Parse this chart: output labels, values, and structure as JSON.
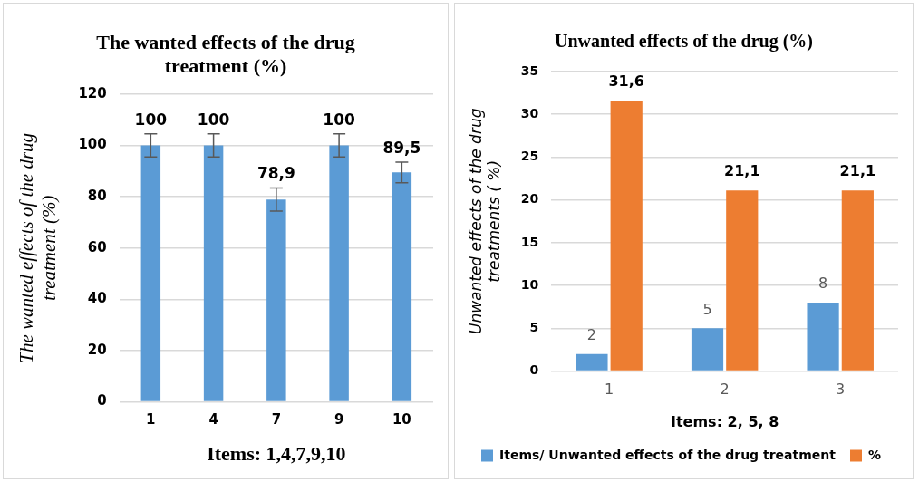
{
  "chart_data": [
    {
      "type": "bar",
      "title": "The wanted effects of the drug treatment (%)",
      "xlabel": "Items: 1,4,7,9,10",
      "ylabel": "The wanted effects of the drug treatment (%)",
      "categories": [
        "1",
        "4",
        "7",
        "9",
        "10"
      ],
      "values": [
        100,
        100,
        78.9,
        100,
        89.5
      ],
      "color": "#5b9bd5",
      "errors": [
        4.5,
        4.5,
        4.5,
        4.5,
        4
      ],
      "value_labels": [
        "100",
        "100",
        "78,9",
        "100",
        "89,5"
      ],
      "ylim": [
        0,
        120
      ],
      "yticks": [
        0,
        20,
        40,
        60,
        80,
        100,
        120
      ],
      "grid": "y",
      "legend": false
    },
    {
      "type": "bar",
      "title": "Unwanted effects of the drug (%)",
      "xlabel": "Items: 2, 5, 8",
      "ylabel": "Unwanted effects of the drug treatments ( %)",
      "categories": [
        "1",
        "2",
        "3"
      ],
      "series": [
        {
          "name": "Items/ Unwanted effects of the drug treatment",
          "color": "#5b9bd5",
          "values": [
            2,
            5,
            8
          ],
          "value_labels": [
            "2",
            "5",
            "8"
          ]
        },
        {
          "name": "%",
          "color": "#ed7d31",
          "values": [
            31.6,
            21.1,
            21.1
          ],
          "value_labels": [
            "31,6",
            "21,1",
            "21,1"
          ]
        }
      ],
      "ylim": [
        0,
        35
      ],
      "yticks": [
        0,
        5,
        10,
        15,
        20,
        25,
        30,
        35
      ],
      "grid": "y",
      "legend": "bottom"
    }
  ]
}
